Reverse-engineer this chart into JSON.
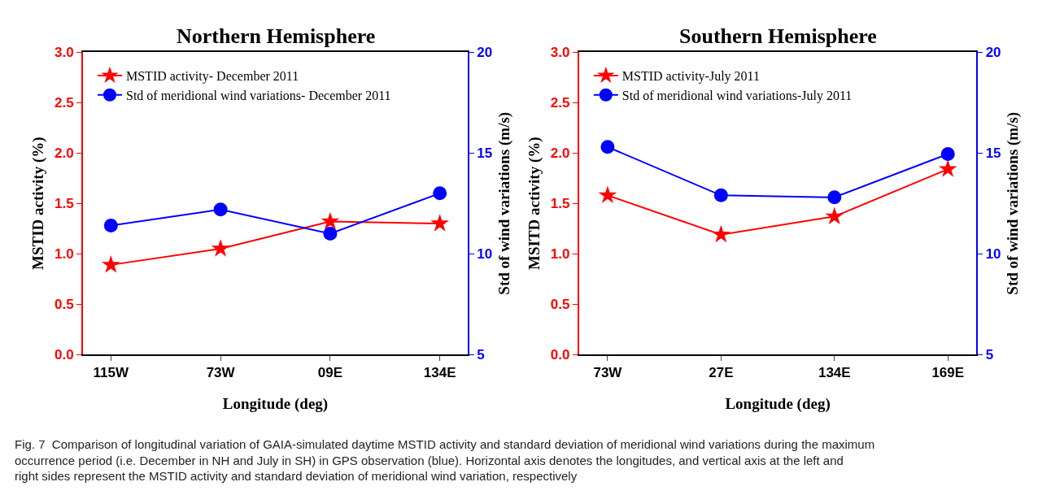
{
  "chart_data": [
    {
      "type": "line",
      "title": "Northern Hemisphere",
      "xlabel": "Longitude (deg)",
      "ylabel": "MSTID activity (%)",
      "y2label": "Std of wind variations (m/s)",
      "categories": [
        "115W",
        "73W",
        "09E",
        "134E"
      ],
      "series": [
        {
          "name": "MSTID activity- December 2011",
          "color": "#ff0000",
          "marker": "star",
          "values": [
            0.89,
            1.05,
            1.32,
            1.3
          ]
        },
        {
          "name": "Std of meridional wind variations- December 2011",
          "color": "#0000ff",
          "marker": "circle",
          "axis": "y2",
          "values": [
            11.4,
            12.2,
            11.0,
            13.0
          ]
        }
      ],
      "ylim": [
        0,
        3
      ],
      "yticks": [
        {
          "value": 0,
          "label": "0.0"
        },
        {
          "value": 0.5,
          "label": "0.5"
        },
        {
          "value": 1,
          "label": "1.0"
        },
        {
          "value": 1.5,
          "label": "1.5"
        },
        {
          "value": 2,
          "label": "2.0"
        },
        {
          "value": 2.5,
          "label": "2.5"
        },
        {
          "value": 3,
          "label": "3.0"
        }
      ],
      "y2lim": [
        5,
        20
      ],
      "y2ticks": [
        5,
        10,
        15,
        20
      ],
      "legend": "top left",
      "line_style": "solid",
      "annotations": [
        "Fig. 7  Comparison of longitudinal variation of GAIA-simulated daytime MSTID activity and standard deviation of meridional wind variations during the maximum occurrence period (i.e. December in NH and July in SH) in GPS observation (blue). Horizontal axis denotes the longitudes, and vertical axis at the left and right sides represent the MSTID activity and standard deviation of meridional wind variation, respectively"
      ]
    },
    {
      "type": "line",
      "title": "Southern Hemisphere",
      "xlabel": "Longitude (deg)",
      "ylabel": "MSITD activity (%)",
      "y2label": "Std of wind variations (m/s)",
      "categories": [
        "73W",
        "27E",
        "134E",
        "169E"
      ],
      "series": [
        {
          "name": "MSTID activity-July 2011",
          "color": "#ff0000",
          "marker": "star",
          "values": [
            1.58,
            1.19,
            1.37,
            1.84
          ]
        },
        {
          "name": "Std of meridional wind variations-July 2011",
          "color": "#0000ff",
          "marker": "circle",
          "axis": "y2",
          "values": [
            15.3,
            12.9,
            12.8,
            14.95
          ]
        }
      ],
      "ylim": [
        0,
        3
      ],
      "yticks": [
        {
          "value": 0,
          "label": "0.0"
        },
        {
          "value": 0.5,
          "label": "0.5"
        },
        {
          "value": 1,
          "label": "1.0"
        },
        {
          "value": 1.5,
          "label": "1.5"
        },
        {
          "value": 2,
          "label": "2.0"
        },
        {
          "value": 2.5,
          "label": "2.5"
        },
        {
          "value": 3,
          "label": "3.0"
        }
      ],
      "y2lim": [
        5,
        20
      ],
      "y2ticks": [
        5,
        10,
        15,
        20
      ],
      "legend": "top left",
      "line_style": "solid"
    }
  ]
}
